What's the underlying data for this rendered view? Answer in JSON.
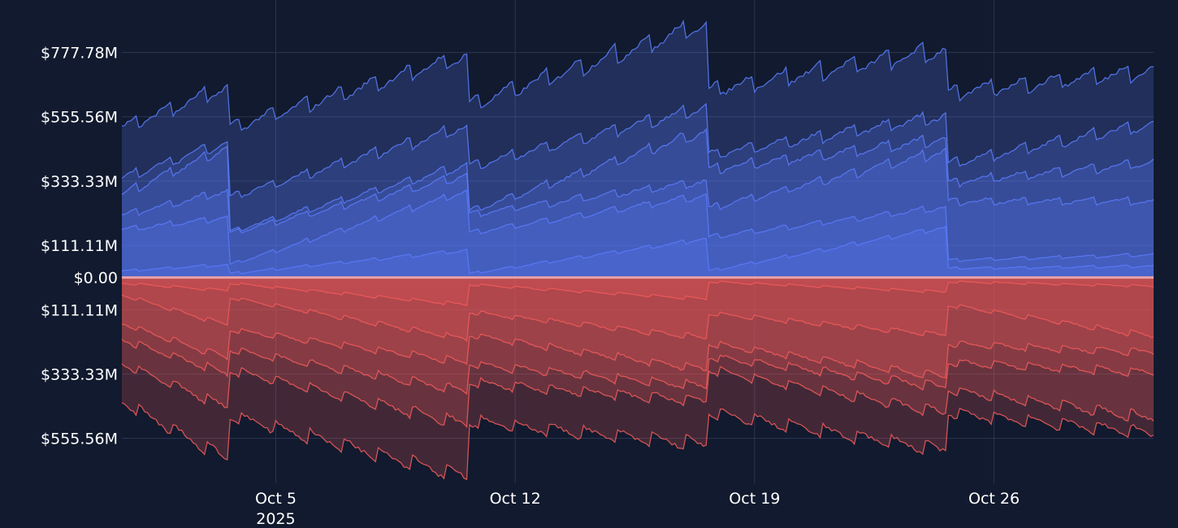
{
  "chart_data": {
    "type": "area",
    "title": "",
    "xlabel": "",
    "ylabel": "",
    "x_range": [
      "2025-09-30T12:00",
      "2025-10-30T16:00"
    ],
    "y_range": [
      -711.11,
      888.89
    ],
    "y_ticks": [
      {
        "value": 777.78,
        "label": "$777.78M"
      },
      {
        "value": 555.56,
        "label": "$555.56M"
      },
      {
        "value": 333.33,
        "label": "$333.33M"
      },
      {
        "value": 111.11,
        "label": "$111.11M"
      },
      {
        "value": 0,
        "label": "$0.00"
      },
      {
        "value": -111.11,
        "label": "$111.11M"
      },
      {
        "value": -333.33,
        "label": "$333.33M"
      },
      {
        "value": -555.56,
        "label": "$555.56M"
      }
    ],
    "x_ticks": [
      {
        "date": "2025-10-05",
        "label": "Oct 5",
        "sublabel": "2025"
      },
      {
        "date": "2025-10-12",
        "label": "Oct 12",
        "sublabel": ""
      },
      {
        "date": "2025-10-19",
        "label": "Oct 19",
        "sublabel": ""
      },
      {
        "date": "2025-10-26",
        "label": "Oct 26",
        "sublabel": ""
      }
    ],
    "resets": [
      "2025-10-03T15:00",
      "2025-10-10T15:00",
      "2025-10-17T15:00",
      "2025-10-24T15:00"
    ],
    "grid": true,
    "legend": "none",
    "positive_color": "#5b7cfa",
    "negative_color": "#f25c5c",
    "positive_series": [
      {
        "points": [
          [
            "2025-09-30T12:00",
            23
          ],
          [
            "2025-10-03T14:00",
            45
          ],
          [
            "2025-10-03T16:00",
            14
          ],
          [
            "2025-10-10T14:00",
            95
          ],
          [
            "2025-10-10T16:00",
            14
          ],
          [
            "2025-10-17T14:00",
            135
          ],
          [
            "2025-10-17T16:00",
            23
          ],
          [
            "2025-10-24T14:00",
            175
          ],
          [
            "2025-10-24T16:00",
            32
          ],
          [
            "2025-10-30T16:00",
            40
          ]
        ]
      },
      {
        "points": [
          [
            "2025-09-30T12:00",
            165
          ],
          [
            "2025-10-03T14:00",
            210
          ],
          [
            "2025-10-03T16:00",
            45
          ],
          [
            "2025-10-10T14:00",
            300
          ],
          [
            "2025-10-10T16:00",
            155
          ],
          [
            "2025-10-17T14:00",
            285
          ],
          [
            "2025-10-17T16:00",
            140
          ],
          [
            "2025-10-24T14:00",
            245
          ],
          [
            "2025-10-24T16:00",
            60
          ],
          [
            "2025-10-30T16:00",
            80
          ]
        ]
      },
      {
        "points": [
          [
            "2025-09-30T12:00",
            215
          ],
          [
            "2025-10-03T14:00",
            300
          ],
          [
            "2025-10-03T16:00",
            155
          ],
          [
            "2025-10-10T14:00",
            355
          ],
          [
            "2025-10-10T16:00",
            220
          ],
          [
            "2025-10-17T14:00",
            335
          ],
          [
            "2025-10-17T16:00",
            240
          ],
          [
            "2025-10-24T14:00",
            440
          ],
          [
            "2025-10-24T16:00",
            265
          ],
          [
            "2025-10-30T16:00",
            265
          ]
        ]
      },
      {
        "points": [
          [
            "2025-09-30T12:00",
            290
          ],
          [
            "2025-10-03T14:00",
            450
          ],
          [
            "2025-10-03T16:00",
            160
          ],
          [
            "2025-10-10T14:00",
            390
          ],
          [
            "2025-10-10T16:00",
            230
          ],
          [
            "2025-10-17T14:00",
            510
          ],
          [
            "2025-10-17T16:00",
            375
          ],
          [
            "2025-10-24T14:00",
            480
          ],
          [
            "2025-10-24T16:00",
            330
          ],
          [
            "2025-10-30T16:00",
            400
          ]
        ]
      },
      {
        "points": [
          [
            "2025-09-30T12:00",
            345
          ],
          [
            "2025-10-03T14:00",
            470
          ],
          [
            "2025-10-03T16:00",
            280
          ],
          [
            "2025-10-10T14:00",
            525
          ],
          [
            "2025-10-10T16:00",
            385
          ],
          [
            "2025-10-17T14:00",
            590
          ],
          [
            "2025-10-17T16:00",
            425
          ],
          [
            "2025-10-24T14:00",
            560
          ],
          [
            "2025-10-24T16:00",
            395
          ],
          [
            "2025-10-30T16:00",
            535
          ]
        ]
      },
      {
        "points": [
          [
            "2025-09-30T12:00",
            520
          ],
          [
            "2025-10-03T14:00",
            660
          ],
          [
            "2025-10-03T16:00",
            520
          ],
          [
            "2025-10-10T14:00",
            770
          ],
          [
            "2025-10-10T16:00",
            600
          ],
          [
            "2025-10-17T14:00",
            880
          ],
          [
            "2025-10-17T16:00",
            650
          ],
          [
            "2025-10-24T14:00",
            790
          ],
          [
            "2025-10-24T16:00",
            640
          ],
          [
            "2025-10-30T16:00",
            720
          ]
        ]
      }
    ],
    "negative_series": [
      {
        "points": [
          [
            "2025-09-30T12:00",
            -20
          ],
          [
            "2025-10-03T14:00",
            -45
          ],
          [
            "2025-10-03T16:00",
            -20
          ],
          [
            "2025-10-10T14:00",
            -95
          ],
          [
            "2025-10-10T16:00",
            -25
          ],
          [
            "2025-10-17T14:00",
            -75
          ],
          [
            "2025-10-17T16:00",
            -15
          ],
          [
            "2025-10-24T14:00",
            -50
          ],
          [
            "2025-10-24T16:00",
            -15
          ],
          [
            "2025-10-30T16:00",
            -30
          ]
        ]
      },
      {
        "points": [
          [
            "2025-09-30T12:00",
            -60
          ],
          [
            "2025-10-03T14:00",
            -165
          ],
          [
            "2025-10-03T16:00",
            -70
          ],
          [
            "2025-10-10T14:00",
            -215
          ],
          [
            "2025-10-10T16:00",
            -120
          ],
          [
            "2025-10-17T14:00",
            -210
          ],
          [
            "2025-10-17T16:00",
            -125
          ],
          [
            "2025-10-24T14:00",
            -200
          ],
          [
            "2025-10-24T16:00",
            -95
          ],
          [
            "2025-10-30T16:00",
            -205
          ]
        ]
      },
      {
        "points": [
          [
            "2025-09-30T12:00",
            -160
          ],
          [
            "2025-10-03T14:00",
            -280
          ],
          [
            "2025-10-03T16:00",
            -180
          ],
          [
            "2025-10-10T14:00",
            -295
          ],
          [
            "2025-10-10T16:00",
            -200
          ],
          [
            "2025-10-17T14:00",
            -320
          ],
          [
            "2025-10-17T16:00",
            -230
          ],
          [
            "2025-10-24T14:00",
            -345
          ],
          [
            "2025-10-24T16:00",
            -230
          ],
          [
            "2025-10-30T16:00",
            -260
          ]
        ]
      },
      {
        "points": [
          [
            "2025-09-30T12:00",
            -215
          ],
          [
            "2025-10-03T14:00",
            -335
          ],
          [
            "2025-10-03T16:00",
            -250
          ],
          [
            "2025-10-10T14:00",
            -395
          ],
          [
            "2025-10-10T16:00",
            -300
          ],
          [
            "2025-10-17T14:00",
            -380
          ],
          [
            "2025-10-17T16:00",
            -275
          ],
          [
            "2025-10-24T14:00",
            -380
          ],
          [
            "2025-10-24T16:00",
            -295
          ],
          [
            "2025-10-30T16:00",
            -330
          ]
        ]
      },
      {
        "points": [
          [
            "2025-09-30T12:00",
            -300
          ],
          [
            "2025-10-03T14:00",
            -450
          ],
          [
            "2025-10-03T16:00",
            -320
          ],
          [
            "2025-10-10T14:00",
            -510
          ],
          [
            "2025-10-10T16:00",
            -365
          ],
          [
            "2025-10-17T14:00",
            -430
          ],
          [
            "2025-10-17T16:00",
            -320
          ],
          [
            "2025-10-24T14:00",
            -470
          ],
          [
            "2025-10-24T16:00",
            -390
          ],
          [
            "2025-10-30T16:00",
            -490
          ]
        ]
      },
      {
        "points": [
          [
            "2025-09-30T12:00",
            -430
          ],
          [
            "2025-10-03T14:00",
            -630
          ],
          [
            "2025-10-03T16:00",
            -480
          ],
          [
            "2025-10-10T14:00",
            -690
          ],
          [
            "2025-10-10T16:00",
            -500
          ],
          [
            "2025-10-17T14:00",
            -580
          ],
          [
            "2025-10-17T16:00",
            -470
          ],
          [
            "2025-10-24T14:00",
            -600
          ],
          [
            "2025-10-24T16:00",
            -470
          ],
          [
            "2025-10-30T16:00",
            -540
          ]
        ]
      }
    ]
  }
}
